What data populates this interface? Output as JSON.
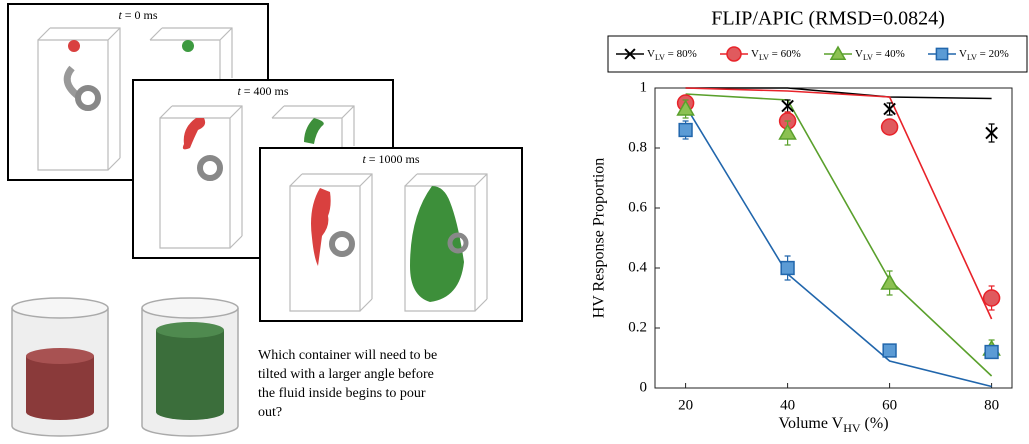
{
  "panels": [
    {
      "var": "t",
      "text": " = 0 ms"
    },
    {
      "var": "t",
      "text": " = 400 ms"
    },
    {
      "var": "t",
      "text": " = 1000 ms"
    }
  ],
  "question": [
    "Which container will need to be",
    "tilted with a larger angle before",
    "the fluid inside begins to pour",
    "out?"
  ],
  "chart_data": {
    "type": "line",
    "title": "FLIP/APIC (RMSD=0.0824)",
    "x_label": {
      "text": "Volume V",
      "sub": "HV",
      "suffix": " (%)"
    },
    "y_label": "HV Response Proportion",
    "x": [
      20,
      40,
      60,
      80
    ],
    "xlim": [
      14,
      84
    ],
    "xticks": [
      20,
      40,
      60,
      80
    ],
    "ylim": [
      0,
      1
    ],
    "yticks": [
      0,
      0.2,
      0.4,
      0.6,
      0.8,
      1
    ],
    "legend": "top",
    "series": [
      {
        "name": "V",
        "name_sub": "LV",
        "name_suffix": " = 80%",
        "marker": "x",
        "color": "#000000",
        "fill": "#000000",
        "values": [
          0.95,
          0.94,
          0.93,
          0.85
        ],
        "errors": [
          0.02,
          0.02,
          0.02,
          0.03
        ],
        "model": [
          1.0,
          1.0,
          0.97,
          0.965
        ]
      },
      {
        "name": "V",
        "name_sub": "LV",
        "name_suffix": " = 60%",
        "marker": "circle",
        "color": "#e8232a",
        "fill": "#e05a5e",
        "values": [
          0.95,
          0.89,
          0.87,
          0.3
        ],
        "errors": [
          0.02,
          0.03,
          0.02,
          0.04
        ],
        "model": [
          1.0,
          0.99,
          0.97,
          0.23
        ]
      },
      {
        "name": "V",
        "name_sub": "LV",
        "name_suffix": " = 40%",
        "marker": "triangle",
        "color": "#5aa02c",
        "fill": "#8cc152",
        "values": [
          0.93,
          0.85,
          0.35,
          0.13
        ],
        "errors": [
          0.03,
          0.04,
          0.04,
          0.03
        ],
        "model": [
          0.98,
          0.96,
          0.36,
          0.04
        ]
      },
      {
        "name": "V",
        "name_sub": "LV",
        "name_suffix": " = 20%",
        "marker": "square",
        "color": "#2166ac",
        "fill": "#5b9bd5",
        "values": [
          0.86,
          0.4,
          0.125,
          0.12
        ],
        "errors": [
          0.03,
          0.04,
          0.02,
          0.02
        ],
        "model": [
          0.94,
          0.38,
          0.09,
          0.005
        ]
      }
    ]
  }
}
